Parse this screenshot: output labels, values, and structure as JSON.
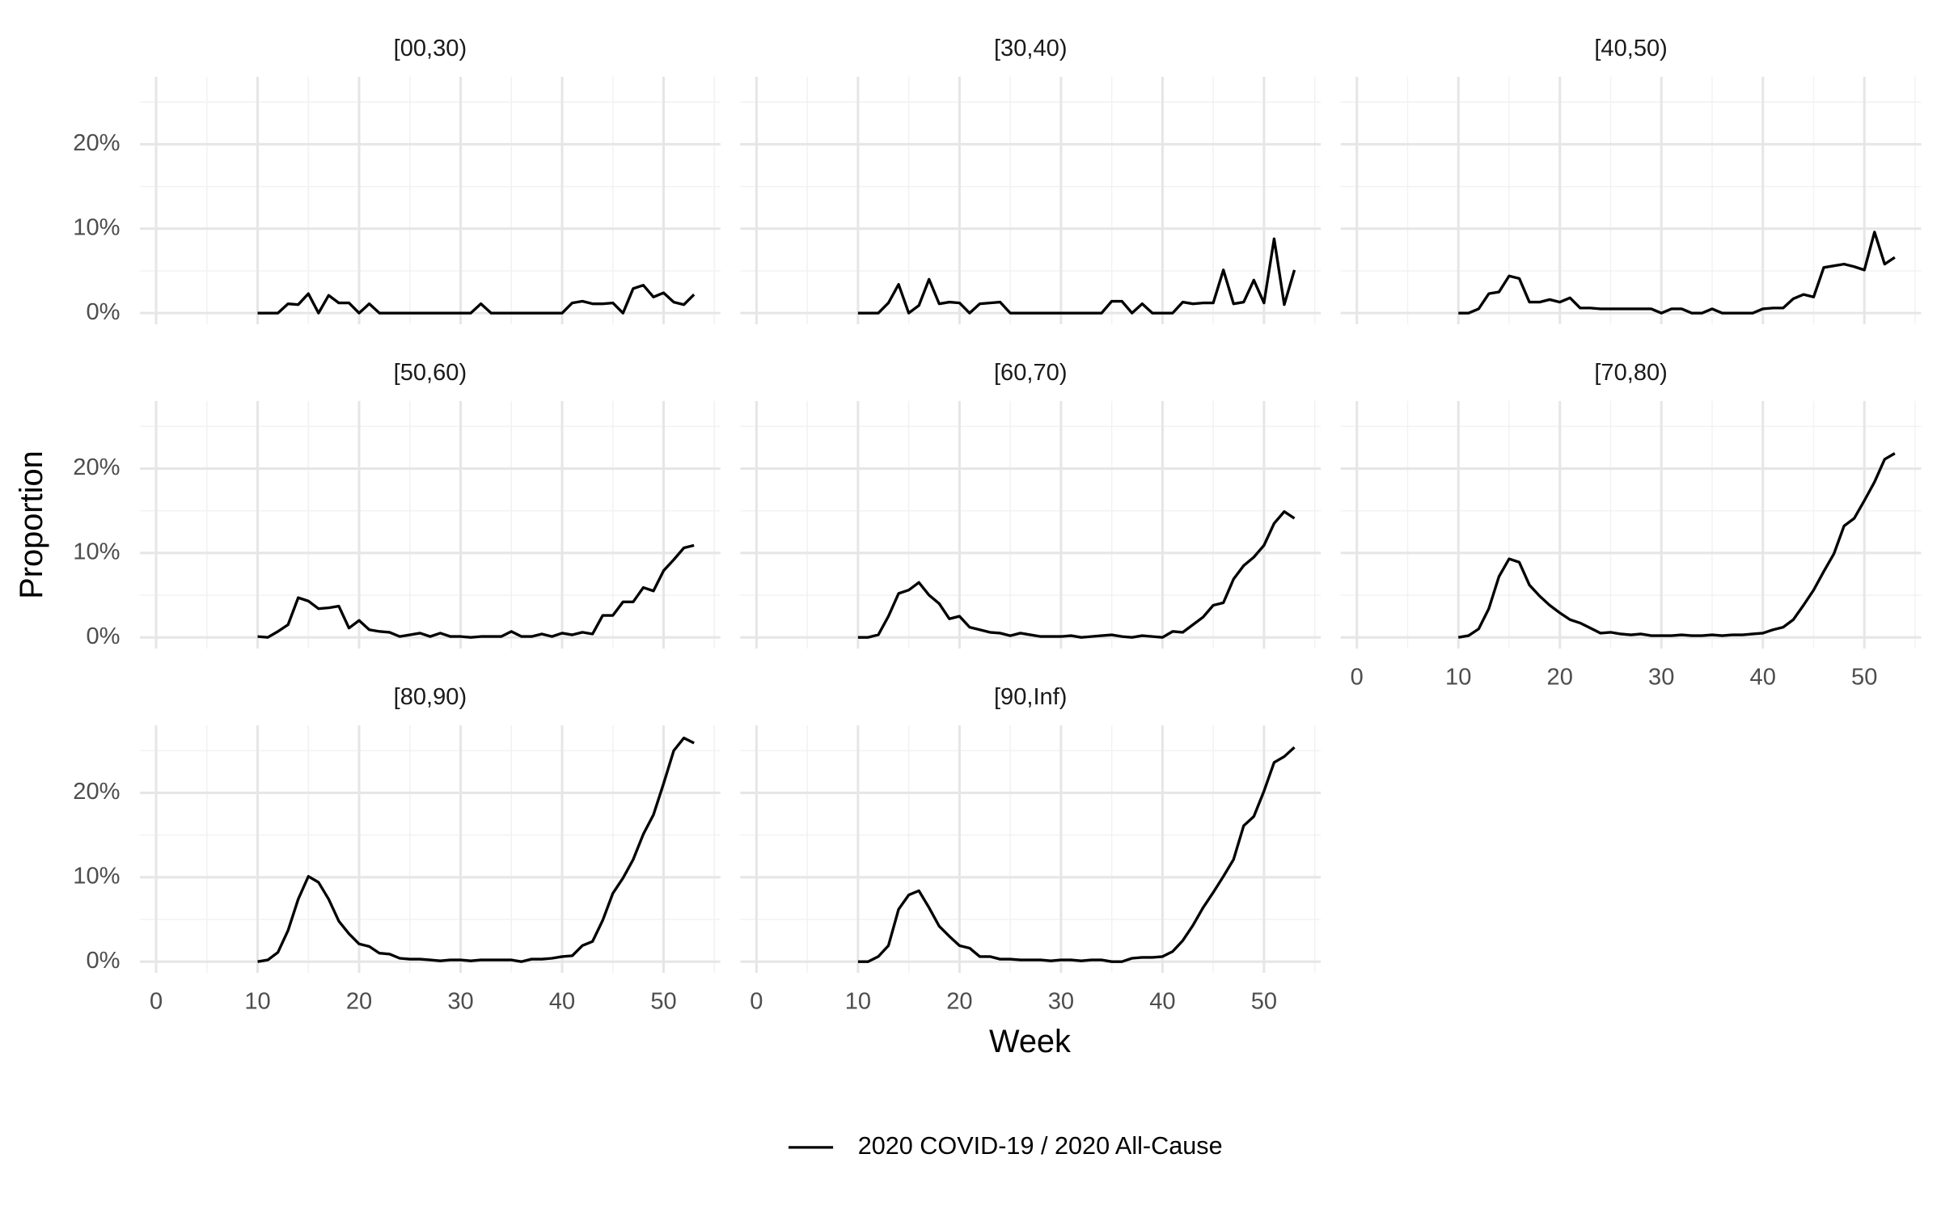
{
  "chart_data": {
    "type": "line",
    "xlabel": "Week",
    "ylabel": "Proportion",
    "legend_position": "bottom",
    "grid": true,
    "series": [
      {
        "name": "2020 COVID-19 / 2020 All-Cause",
        "color": "#000000"
      }
    ],
    "x": [
      10,
      11,
      12,
      13,
      14,
      15,
      16,
      17,
      18,
      19,
      20,
      21,
      22,
      23,
      24,
      25,
      26,
      27,
      28,
      29,
      30,
      31,
      32,
      33,
      34,
      35,
      36,
      37,
      38,
      39,
      40,
      41,
      42,
      43,
      44,
      45,
      46,
      47,
      48,
      49,
      50,
      51,
      52,
      53
    ],
    "xlim": [
      -1.6,
      55.6
    ],
    "xticks": [
      0,
      10,
      20,
      30,
      40,
      50
    ],
    "xminor": [
      5,
      15,
      25,
      35,
      45,
      55
    ],
    "ylim": [
      -1.33,
      28
    ],
    "yticks": [
      {
        "value": 0,
        "label": "0%"
      },
      {
        "value": 10,
        "label": "10%"
      },
      {
        "value": 20,
        "label": "20%"
      }
    ],
    "yminor": [
      5,
      15,
      25
    ],
    "facets": [
      {
        "title": "[00,30)",
        "values": [
          0,
          0,
          0,
          1.1,
          1.0,
          2.3,
          0,
          2.1,
          1.2,
          1.2,
          0,
          1.1,
          0,
          0,
          0,
          0,
          0,
          0,
          0,
          0,
          0,
          0,
          1.1,
          0,
          0,
          0,
          0,
          0,
          0,
          0,
          0,
          1.2,
          1.4,
          1.1,
          1.1,
          1.2,
          0,
          2.9,
          3.3,
          1.9,
          2.4,
          1.3,
          1.0,
          2.2
        ]
      },
      {
        "title": "[30,40)",
        "values": [
          0,
          0,
          0,
          1.2,
          3.4,
          0,
          0.9,
          4.0,
          1.1,
          1.3,
          1.2,
          0,
          1.1,
          1.2,
          1.3,
          0,
          0,
          0,
          0,
          0,
          0,
          0,
          0,
          0,
          0,
          1.4,
          1.4,
          0,
          1.1,
          0,
          0,
          0,
          1.3,
          1.1,
          1.2,
          1.2,
          5.1,
          1.1,
          1.3,
          3.9,
          1.2,
          8.8,
          1.0,
          5.1
        ]
      },
      {
        "title": "[40,50)",
        "values": [
          0,
          0,
          0.5,
          2.3,
          2.5,
          4.4,
          4.1,
          1.3,
          1.3,
          1.6,
          1.3,
          1.8,
          0.6,
          0.6,
          0.5,
          0.5,
          0.5,
          0.5,
          0.5,
          0.5,
          0,
          0.5,
          0.5,
          0,
          0,
          0.5,
          0,
          0,
          0,
          0,
          0.5,
          0.6,
          0.6,
          1.7,
          2.2,
          1.9,
          5.4,
          5.6,
          5.8,
          5.5,
          5.1,
          9.6,
          5.8,
          6.6
        ]
      },
      {
        "title": "[50,60)",
        "values": [
          0.1,
          0,
          0.7,
          1.5,
          4.7,
          4.3,
          3.4,
          3.5,
          3.7,
          1.1,
          2.0,
          0.9,
          0.7,
          0.6,
          0.1,
          0.3,
          0.5,
          0.1,
          0.5,
          0.1,
          0.1,
          0,
          0.1,
          0.1,
          0.1,
          0.7,
          0.1,
          0.1,
          0.4,
          0.1,
          0.5,
          0.3,
          0.6,
          0.4,
          2.6,
          2.6,
          4.2,
          4.2,
          5.9,
          5.5,
          7.9,
          9.2,
          10.6,
          10.9
        ]
      },
      {
        "title": "[60,70)",
        "values": [
          0,
          0,
          0.3,
          2.5,
          5.2,
          5.6,
          6.5,
          5.0,
          4.0,
          2.2,
          2.5,
          1.2,
          0.9,
          0.6,
          0.5,
          0.2,
          0.5,
          0.3,
          0.1,
          0.1,
          0.1,
          0.2,
          0,
          0.1,
          0.2,
          0.3,
          0.1,
          0,
          0.2,
          0.1,
          0,
          0.7,
          0.6,
          1.5,
          2.4,
          3.8,
          4.1,
          6.9,
          8.5,
          9.5,
          10.9,
          13.5,
          14.9,
          14.1
        ]
      },
      {
        "title": "[70,80)",
        "values": [
          0,
          0.2,
          1.0,
          3.4,
          7.2,
          9.3,
          8.9,
          6.2,
          4.9,
          3.8,
          2.9,
          2.1,
          1.7,
          1.1,
          0.5,
          0.6,
          0.4,
          0.3,
          0.4,
          0.2,
          0.2,
          0.2,
          0.3,
          0.2,
          0.2,
          0.3,
          0.2,
          0.3,
          0.3,
          0.4,
          0.5,
          0.9,
          1.2,
          2.1,
          3.8,
          5.6,
          7.8,
          9.9,
          13.2,
          14.1,
          16.2,
          18.4,
          21.1,
          21.8
        ]
      },
      {
        "title": "[80,90)",
        "values": [
          0,
          0.2,
          1.1,
          3.7,
          7.4,
          10.1,
          9.4,
          7.4,
          4.8,
          3.3,
          2.1,
          1.8,
          1.0,
          0.9,
          0.4,
          0.3,
          0.3,
          0.2,
          0.1,
          0.2,
          0.2,
          0.1,
          0.2,
          0.2,
          0.2,
          0.2,
          0,
          0.3,
          0.3,
          0.4,
          0.6,
          0.7,
          1.9,
          2.4,
          4.9,
          8.1,
          9.9,
          12.1,
          15.1,
          17.4,
          21.1,
          25.0,
          26.5,
          25.9
        ]
      },
      {
        "title": "[90,Inf)",
        "values": [
          0,
          0,
          0.6,
          1.9,
          6.2,
          7.9,
          8.4,
          6.4,
          4.2,
          3.0,
          1.9,
          1.6,
          0.6,
          0.6,
          0.3,
          0.3,
          0.2,
          0.2,
          0.2,
          0.1,
          0.2,
          0.2,
          0.1,
          0.2,
          0.2,
          0,
          0,
          0.4,
          0.5,
          0.5,
          0.6,
          1.2,
          2.5,
          4.3,
          6.4,
          8.2,
          10.1,
          12.1,
          16.1,
          17.2,
          20.2,
          23.6,
          24.3,
          25.4
        ]
      }
    ]
  }
}
